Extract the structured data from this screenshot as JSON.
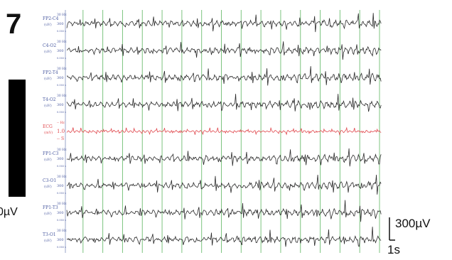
{
  "panel_label": "7",
  "left_scale_label": "0µV",
  "scale_bar": {
    "amplitude_label": "300µV",
    "time_label": "1s"
  },
  "chart_data": {
    "type": "line",
    "duration_s": 16,
    "time_marker_interval_s": 1,
    "trace_color": "#2a2a2a",
    "ecg_color": "#e0474c",
    "marker_color": "#7cc47f",
    "channels": [
      {
        "name": "FP2-C4",
        "unit": "(uV)",
        "filter": "30 Hz",
        "gain": "300",
        "tc": "0.003 s",
        "kind": "eeg"
      },
      {
        "name": "C4-O2",
        "unit": "(uV)",
        "filter": "30 Hz",
        "gain": "300",
        "tc": "0.003 s",
        "kind": "eeg"
      },
      {
        "name": "FP2-T4",
        "unit": "(uV)",
        "filter": "30 Hz",
        "gain": "300",
        "tc": "0.003 s",
        "kind": "eeg"
      },
      {
        "name": "T4-O2",
        "unit": "(uV)",
        "filter": "30 Hz",
        "gain": "300",
        "tc": "0.003 s",
        "kind": "eeg"
      },
      {
        "name": "ECG",
        "unit": "(mV)",
        "filter": "-- Hz",
        "gain": "1.0",
        "tc": "-- S",
        "kind": "ecg"
      },
      {
        "name": "FP1-C3",
        "unit": "(uV)",
        "filter": "30 Hz",
        "gain": "300",
        "tc": "0.003 s",
        "kind": "eeg"
      },
      {
        "name": "C3-O1",
        "unit": "(uV)",
        "filter": "30 Hz",
        "gain": "300",
        "tc": "0.003 s",
        "kind": "eeg"
      },
      {
        "name": "FP1-T3",
        "unit": "(uV)",
        "filter": "30 Hz",
        "gain": "300",
        "tc": "0.003 s",
        "kind": "eeg"
      },
      {
        "name": "T3-O1",
        "unit": "(uV)",
        "filter": "30 Hz",
        "gain": "300",
        "tc": "0.003 s",
        "kind": "eeg"
      }
    ]
  }
}
